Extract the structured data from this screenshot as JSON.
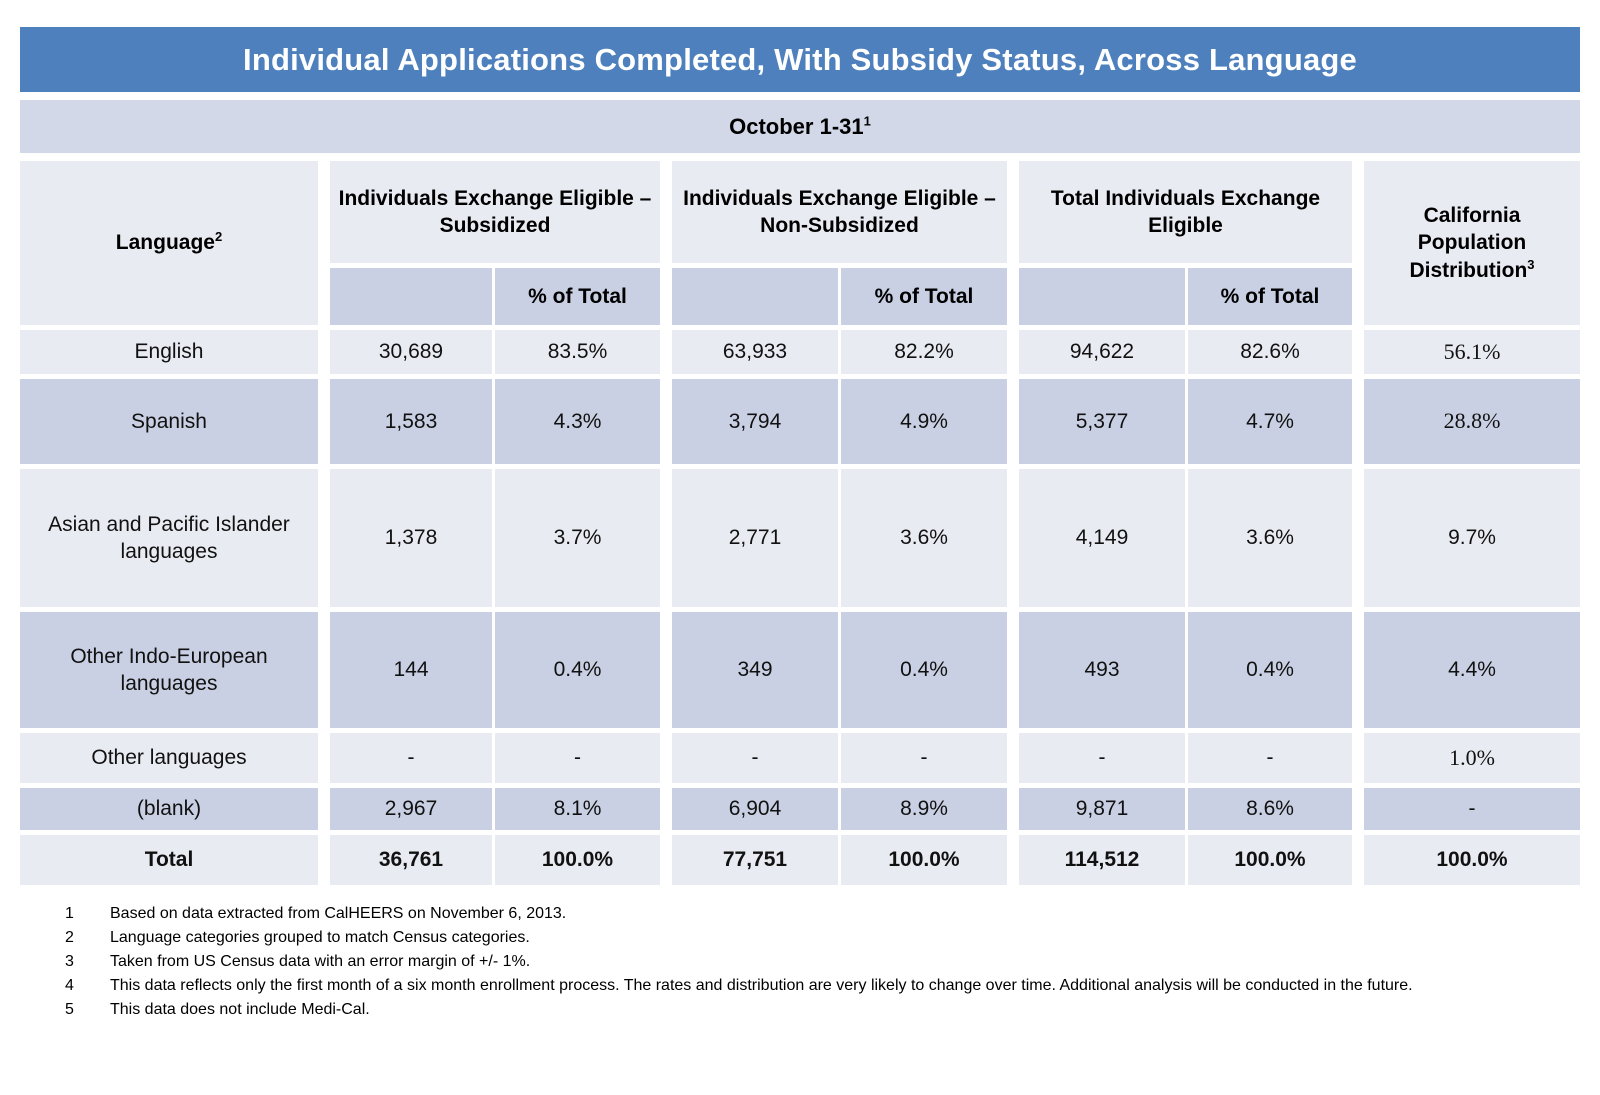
{
  "title": "Individual Applications Completed, With Subsidy Status, Across Language",
  "subtitle": {
    "text": "October 1-31",
    "footnote_ref": "1"
  },
  "colors": {
    "title_bar_blue": "#4d80bd",
    "band_lavender": "#d2d8e8",
    "row_light": "#e9ebf2",
    "row_dark": "#c9d0e3"
  },
  "table": {
    "language_header": {
      "text": "Language",
      "footnote_ref": "2"
    },
    "groups": [
      {
        "label": "Individuals Exchange Eligible – Subsidized"
      },
      {
        "label": "Individuals Exchange Eligible – Non-Subsidized"
      },
      {
        "label": "Total Individuals Exchange Eligible"
      }
    ],
    "pct_of_total_label": "% of Total",
    "ca_header": {
      "text": "California Population Distribution",
      "footnote_ref": "3"
    },
    "rows": [
      {
        "language": "English",
        "sub_count": "30,689",
        "sub_pct": "83.5%",
        "nonsub_count": "63,933",
        "nonsub_pct": "82.2%",
        "total_count": "94,622",
        "total_pct": "82.6%",
        "ca_pct": "56.1%"
      },
      {
        "language": "Spanish",
        "sub_count": "1,583",
        "sub_pct": "4.3%",
        "nonsub_count": "3,794",
        "nonsub_pct": "4.9%",
        "total_count": "5,377",
        "total_pct": "4.7%",
        "ca_pct": "28.8%"
      },
      {
        "language": "Asian and Pacific Islander languages",
        "sub_count": "1,378",
        "sub_pct": "3.7%",
        "nonsub_count": "2,771",
        "nonsub_pct": "3.6%",
        "total_count": "4,149",
        "total_pct": "3.6%",
        "ca_pct": "9.7%"
      },
      {
        "language": "Other Indo-European languages",
        "sub_count": "144",
        "sub_pct": "0.4%",
        "nonsub_count": "349",
        "nonsub_pct": "0.4%",
        "total_count": "493",
        "total_pct": "0.4%",
        "ca_pct": "4.4%"
      },
      {
        "language": "Other languages",
        "sub_count": "-",
        "sub_pct": "-",
        "nonsub_count": "-",
        "nonsub_pct": "-",
        "total_count": "-",
        "total_pct": "-",
        "ca_pct": "1.0%"
      },
      {
        "language": "(blank)",
        "sub_count": "2,967",
        "sub_pct": "8.1%",
        "nonsub_count": "6,904",
        "nonsub_pct": "8.9%",
        "total_count": "9,871",
        "total_pct": "8.6%",
        "ca_pct": "-"
      },
      {
        "language": "Total",
        "sub_count": "36,761",
        "sub_pct": "100.0%",
        "nonsub_count": "77,751",
        "nonsub_pct": "100.0%",
        "total_count": "114,512",
        "total_pct": "100.0%",
        "ca_pct": "100.0%"
      }
    ]
  },
  "footnotes": [
    {
      "num": "1",
      "text": "Based on data extracted from CalHEERS on November 6, 2013."
    },
    {
      "num": "2",
      "text": "Language categories grouped to match Census categories."
    },
    {
      "num": "3",
      "text": "Taken from US Census data with an error margin of +/- 1%."
    },
    {
      "num": "4",
      "text": "This data reflects only the first month of a six month enrollment process. The rates and distribution are very likely to change over time. Additional analysis will be conducted in the future."
    },
    {
      "num": "5",
      "text": "This data does not include Medi-Cal."
    }
  ]
}
